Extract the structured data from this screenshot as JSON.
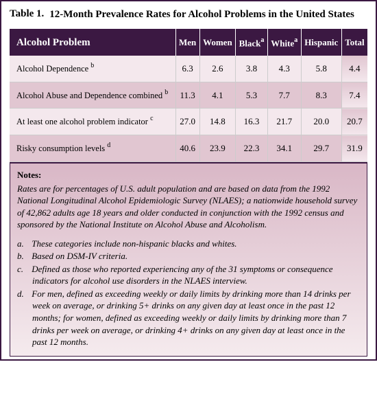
{
  "title_label": "Table 1.",
  "title_text": "12-Month Prevalence Rates for Alcohol Problems in the United States",
  "columns": [
    {
      "label": "Alcohol Problem",
      "sup": ""
    },
    {
      "label": "Men",
      "sup": ""
    },
    {
      "label": "Women",
      "sup": ""
    },
    {
      "label": "Black",
      "sup": "a"
    },
    {
      "label": "White",
      "sup": "a"
    },
    {
      "label": "Hispanic",
      "sup": ""
    },
    {
      "label": "Total",
      "sup": ""
    }
  ],
  "rows": [
    {
      "label": "Alcohol Dependence",
      "sup": "b",
      "vals": [
        "6.3",
        "2.6",
        "3.8",
        "4.3",
        "5.8",
        "4.4"
      ]
    },
    {
      "label": "Alcohol Abuse and Dependence combined",
      "sup": "b",
      "vals": [
        "11.3",
        "4.1",
        "5.3",
        "7.7",
        "8.3",
        "7.4"
      ]
    },
    {
      "label": "At least one alcohol problem indicator",
      "sup": "c",
      "vals": [
        "27.0",
        "14.8",
        "16.3",
        "21.7",
        "20.0",
        "20.7"
      ]
    },
    {
      "label": "Risky consumption levels",
      "sup": "d",
      "vals": [
        "40.6",
        "23.9",
        "22.3",
        "34.1",
        "29.7",
        "31.9"
      ]
    }
  ],
  "notes_title": "Notes:",
  "notes_intro": "Rates are for percentages of U.S. adult population and are based on data from the 1992 National Longitudinal Alcohol Epidemiologic Survey (NLAES); a nationwide household survey of 42,862 adults age 18 years and older conducted in conjunction with the 1992 census and sponsored by the National Institute on Alcohol Abuse and Alcoholism.",
  "notes_items": [
    {
      "marker": "a.",
      "text": "These categories include non-hispanic blacks and whites."
    },
    {
      "marker": "b.",
      "text": "Based on DSM-IV criteria."
    },
    {
      "marker": "c.",
      "text": "Defined as those who reported experiencing any of the 31 symptoms or consequence indicators for alcohol use disorders in the NLAES interview."
    },
    {
      "marker": "d.",
      "text": "For men, defined as exceeding weekly or daily limits by drinking more than 14 drinks per week on average, or drinking 5+ drinks on any given day at least once in the past 12 months; for women, defined as exceeding weekly or daily limits by drinking more than 7 drinks per week on average, or drinking 4+ drinks on any given day at least once in the past 12 months."
    }
  ]
}
